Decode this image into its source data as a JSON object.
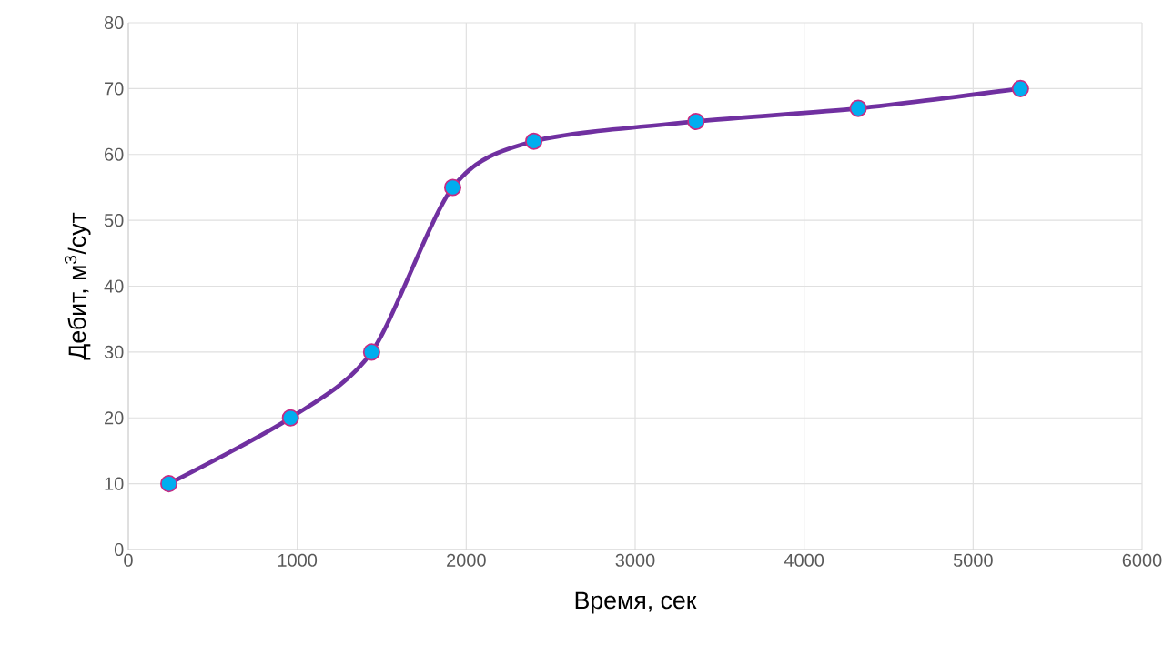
{
  "chart_data": {
    "type": "line",
    "xlabel": "Время, сек",
    "ylabel": "Дебит, м$^{3}$/сут",
    "x": [
      240,
      960,
      1440,
      1920,
      2400,
      3360,
      4320,
      5280
    ],
    "series": [
      {
        "color": "#7030a0",
        "values": [
          10,
          20,
          30,
          55,
          62,
          65,
          67,
          70
        ]
      }
    ],
    "xlim": [
      0,
      6000
    ],
    "ylim": [
      0,
      80
    ],
    "xticks": [
      0,
      1000,
      2000,
      3000,
      4000,
      5000,
      6000
    ],
    "yticks": [
      0,
      10,
      20,
      30,
      40,
      50,
      60,
      70,
      80
    ],
    "grid": true,
    "marker": "circle",
    "line_style": "solid"
  }
}
